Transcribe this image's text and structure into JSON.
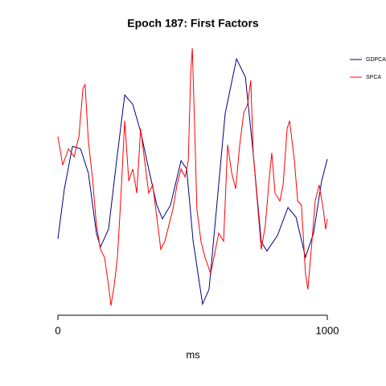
{
  "chart_data": {
    "type": "line",
    "title": "Epoch 187: First Factors",
    "xlabel": "ms",
    "xlim": [
      0,
      1000
    ],
    "xticks": [
      0,
      1000
    ],
    "ylim": [
      0,
      100
    ],
    "legend": "right",
    "series": [
      {
        "name": "GDPCA",
        "color": "#000080",
        "x": [
          0,
          24,
          54,
          84,
          113,
          143,
          158,
          188,
          218,
          248,
          278,
          308,
          337,
          367,
          388,
          418,
          457,
          478,
          502,
          537,
          561,
          591,
          621,
          663,
          696,
          725,
          755,
          776,
          815,
          854,
          884,
          919,
          949,
          979,
          1000
        ],
        "values": [
          26.7,
          45.5,
          61.5,
          60.6,
          51.5,
          28.8,
          23.6,
          30.3,
          56.1,
          80.9,
          77.3,
          66.7,
          53.0,
          39.4,
          34.2,
          39.4,
          56.1,
          53.0,
          25.8,
          2.1,
          7.6,
          40.6,
          73.9,
          94.5,
          87.6,
          58.8,
          25.5,
          22.1,
          27.9,
          38.5,
          34.8,
          19.7,
          28.8,
          48.5,
          56.7
        ]
      },
      {
        "name": "SPCA",
        "color": "#ff0000",
        "x": [
          0,
          18,
          39,
          60,
          78,
          93,
          101,
          113,
          128,
          143,
          158,
          173,
          188,
          197,
          209,
          221,
          233,
          248,
          263,
          278,
          293,
          307,
          322,
          337,
          352,
          367,
          382,
          397,
          412,
          427,
          442,
          457,
          472,
          484,
          493,
          499,
          507,
          516,
          531,
          546,
          567,
          585,
          597,
          615,
          630,
          645,
          660,
          675,
          690,
          704,
          716,
          725,
          740,
          755,
          770,
          785,
          794,
          806,
          824,
          836,
          851,
          860,
          869,
          878,
          890,
          904,
          919,
          928,
          943,
          955,
          970,
          985,
          994,
          1000
        ],
        "values": [
          65.2,
          54.5,
          60.6,
          57.6,
          65.2,
          83.3,
          84.8,
          63.6,
          50,
          31.8,
          22.7,
          19.7,
          9.1,
          1.5,
          9.1,
          19.7,
          40.9,
          71.2,
          48.5,
          53,
          43.9,
          68.2,
          56.1,
          43.9,
          47,
          34.8,
          22.7,
          25.8,
          31.8,
          37.9,
          47,
          53,
          50,
          56.1,
          89.4,
          98.5,
          71.2,
          37.9,
          25.8,
          19.7,
          13.6,
          22.7,
          28.8,
          25.8,
          62.1,
          51.5,
          45.5,
          62.1,
          74.2,
          77.3,
          86.4,
          59.1,
          40.9,
          22.7,
          31.8,
          50,
          59.1,
          43.9,
          40.9,
          47,
          68.2,
          71.2,
          63.6,
          56.1,
          40.9,
          39.4,
          13.6,
          7.6,
          25.8,
          40.9,
          47,
          37.9,
          30.3,
          34.2
        ]
      }
    ]
  }
}
